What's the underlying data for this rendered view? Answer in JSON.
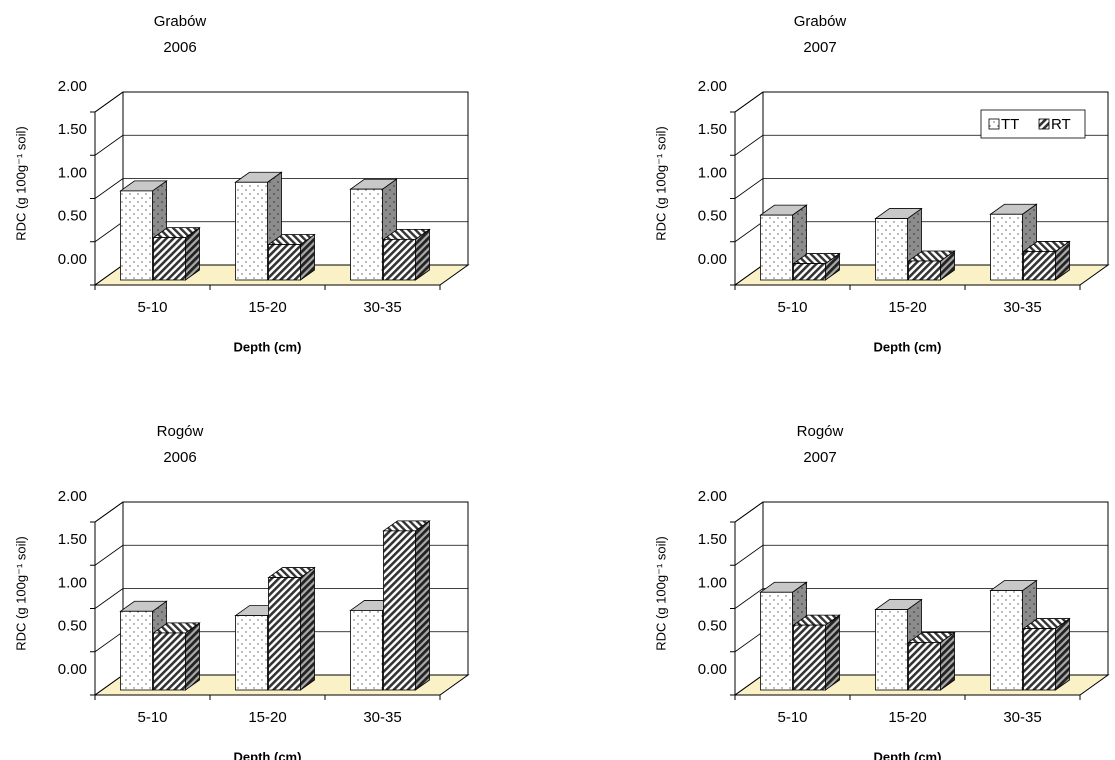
{
  "chart_data": [
    {
      "type": "bar3d",
      "title": "Grabów",
      "subtitle": "2006",
      "x_label": "Depth (cm)",
      "y_label": "RDC (g 100g⁻¹ soil)",
      "categories": [
        "5-10",
        "15-20",
        "30-35"
      ],
      "series": [
        {
          "color": "#ffffff",
          "pattern": "dots",
          "values": [
            1.03,
            1.13,
            1.05
          ]
        },
        {
          "color": "#333333",
          "pattern": "hatch",
          "values": [
            0.49,
            0.41,
            0.47
          ]
        }
      ],
      "ylim": [
        0,
        2
      ],
      "yticks": [
        {
          "value": 0,
          "label": "0.00"
        },
        {
          "value": 0.5,
          "label": "0.50"
        },
        {
          "value": 1,
          "label": "1.00"
        },
        {
          "value": 1.5,
          "label": "1.50"
        },
        {
          "value": 2,
          "label": "2.00"
        }
      ],
      "grid": true,
      "legend": false,
      "floor_color": "#fbf1c6"
    },
    {
      "type": "bar3d",
      "title": "Grabów",
      "subtitle": "2007",
      "x_label": "Depth (cm)",
      "y_label": "RDC (g 100g⁻¹ soil)",
      "categories": [
        "5-10",
        "15-20",
        "30-35"
      ],
      "series": [
        {
          "name": "TT",
          "color": "#ffffff",
          "pattern": "dots",
          "values": [
            0.75,
            0.71,
            0.76
          ]
        },
        {
          "name": "RT",
          "color": "#333333",
          "pattern": "hatch",
          "values": [
            0.19,
            0.22,
            0.33
          ]
        }
      ],
      "ylim": [
        0,
        2
      ],
      "yticks": [
        {
          "value": 0,
          "label": "0.00"
        },
        {
          "value": 0.5,
          "label": "0.50"
        },
        {
          "value": 1,
          "label": "1.00"
        },
        {
          "value": 1.5,
          "label": "1.50"
        },
        {
          "value": 2,
          "label": "2.00"
        }
      ],
      "grid": true,
      "legend": true,
      "legend_position": "top-right",
      "floor_color": "#fbf1c6"
    },
    {
      "type": "bar3d",
      "title": "Rogów",
      "subtitle": "2006",
      "x_label": "Depth (cm)",
      "y_label": "RDC (g 100g⁻¹ soil)",
      "categories": [
        "5-10",
        "15-20",
        "30-35"
      ],
      "series": [
        {
          "color": "#ffffff",
          "pattern": "dots",
          "values": [
            0.91,
            0.86,
            0.92
          ]
        },
        {
          "color": "#333333",
          "pattern": "hatch",
          "values": [
            0.66,
            1.3,
            1.84
          ]
        }
      ],
      "ylim": [
        0,
        2
      ],
      "yticks": [
        {
          "value": 0,
          "label": "0.00"
        },
        {
          "value": 0.5,
          "label": "0.50"
        },
        {
          "value": 1,
          "label": "1.00"
        },
        {
          "value": 1.5,
          "label": "1.50"
        },
        {
          "value": 2,
          "label": "2.00"
        }
      ],
      "grid": true,
      "legend": false,
      "floor_color": "#fbf1c6"
    },
    {
      "type": "bar3d",
      "title": "Rogów",
      "subtitle": "2007",
      "x_label": "Depth (cm)",
      "y_label": "RDC (g 100g⁻¹ soil)",
      "categories": [
        "5-10",
        "15-20",
        "30-35"
      ],
      "series": [
        {
          "color": "#ffffff",
          "pattern": "dots",
          "values": [
            1.13,
            0.93,
            1.15
          ]
        },
        {
          "color": "#333333",
          "pattern": "hatch",
          "values": [
            0.75,
            0.55,
            0.71
          ]
        }
      ],
      "ylim": [
        0,
        2
      ],
      "yticks": [
        {
          "value": 0,
          "label": "0.00"
        },
        {
          "value": 0.5,
          "label": "0.50"
        },
        {
          "value": 1,
          "label": "1.00"
        },
        {
          "value": 1.5,
          "label": "1.50"
        },
        {
          "value": 2,
          "label": "2.00"
        }
      ],
      "grid": true,
      "legend": false,
      "floor_color": "#fbf1c6"
    }
  ]
}
